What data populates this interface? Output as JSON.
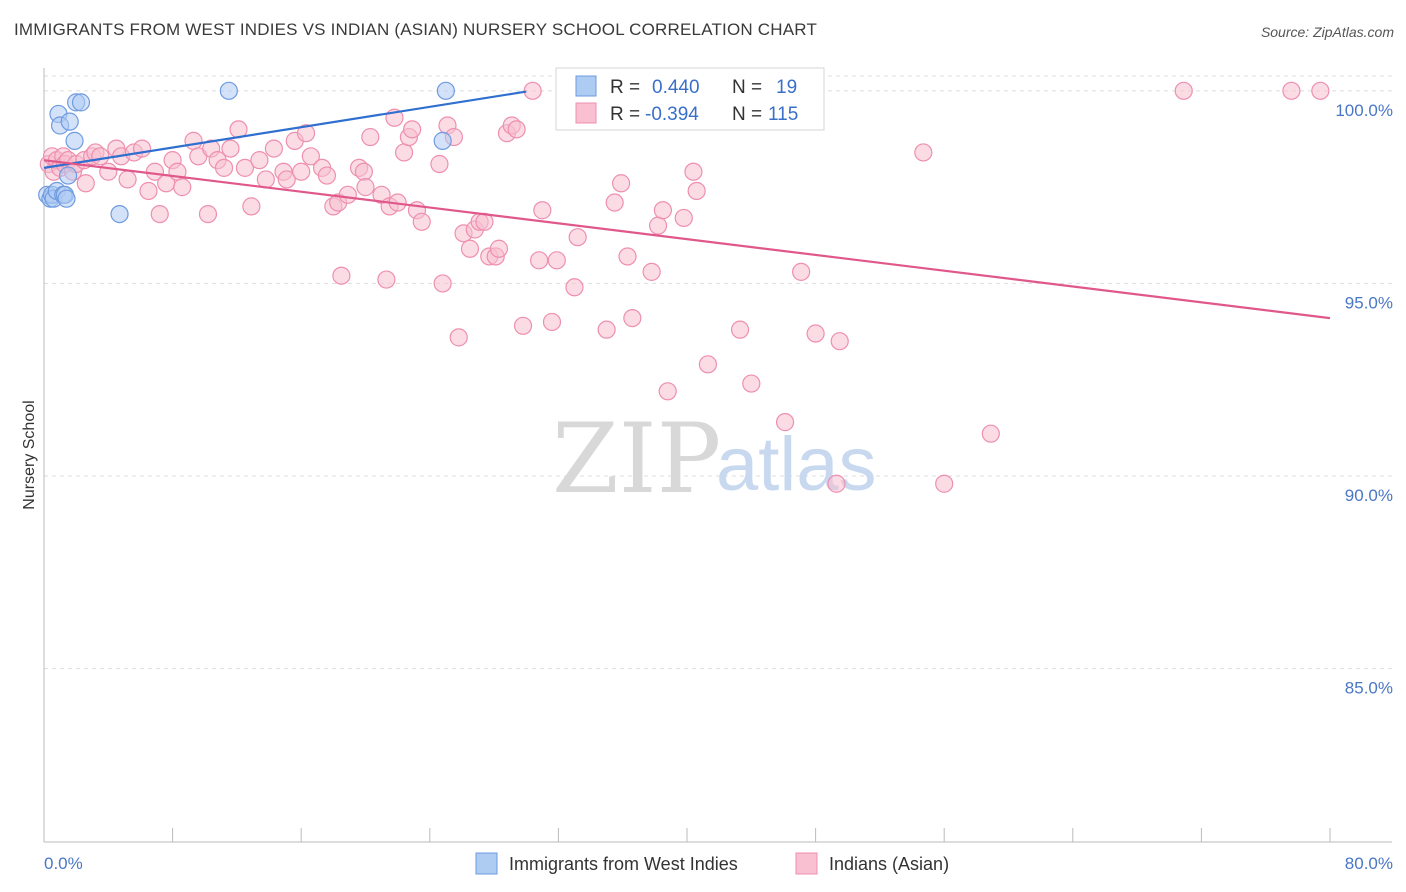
{
  "title": "IMMIGRANTS FROM WEST INDIES VS INDIAN (ASIAN) NURSERY SCHOOL CORRELATION CHART",
  "source": "Source: ZipAtlas.com",
  "watermark": {
    "zip": "ZIP",
    "atlas": "atlas"
  },
  "legend_top": [
    {
      "r_label": "R =",
      "r_value": "0.440",
      "n_label": "N =",
      "n_value": "19",
      "color": "#aecbf2",
      "stroke": "#6f9be0"
    },
    {
      "r_label": "R =",
      "r_value": "-0.394",
      "n_label": "N =",
      "n_value": "115",
      "color": "#f8c0d0",
      "stroke": "#ee8fb0"
    }
  ],
  "chart_data": {
    "type": "scatter",
    "title": "IMMIGRANTS FROM WEST INDIES VS INDIAN (ASIAN) NURSERY SCHOOL CORRELATION CHART",
    "xlabel": "",
    "ylabel": "Nursery School",
    "xlim": [
      0,
      80
    ],
    "ylim": [
      80.5,
      100.8
    ],
    "x_tick_labels": [
      "0.0%",
      "80.0%"
    ],
    "y_ticks": [
      85,
      90,
      95,
      100
    ],
    "y_tick_labels": [
      "85.0%",
      "90.0%",
      "95.0%",
      "100.0%"
    ],
    "series": [
      {
        "name": "Immigrants from West Indies",
        "color": "#aecbf2",
        "stroke": "#6f9be0",
        "line_color": "#2f6fcf",
        "trend": [
          [
            0,
            98.0
          ],
          [
            30,
            99.98
          ]
        ],
        "points": [
          [
            0.2,
            97.3
          ],
          [
            0.4,
            97.2
          ],
          [
            0.5,
            97.3
          ],
          [
            0.6,
            97.2
          ],
          [
            0.8,
            97.4
          ],
          [
            0.9,
            99.4
          ],
          [
            1.0,
            99.1
          ],
          [
            1.2,
            97.3
          ],
          [
            1.3,
            97.3
          ],
          [
            1.4,
            97.2
          ],
          [
            1.5,
            97.8
          ],
          [
            1.6,
            99.2
          ],
          [
            1.9,
            98.7
          ],
          [
            2.0,
            99.7
          ],
          [
            2.3,
            99.7
          ],
          [
            4.7,
            96.8
          ],
          [
            11.5,
            100.0
          ],
          [
            25.0,
            100.0
          ],
          [
            24.8,
            98.7
          ]
        ]
      },
      {
        "name": "Indians (Asian)",
        "color": "#f8c0d0",
        "stroke": "#ee8fb0",
        "line_color": "#e0588a",
        "trend": [
          [
            0,
            98.2
          ],
          [
            80,
            94.1
          ]
        ],
        "points": [
          [
            0.3,
            98.1
          ],
          [
            0.5,
            98.3
          ],
          [
            0.6,
            97.9
          ],
          [
            0.8,
            98.2
          ],
          [
            1.0,
            98.0
          ],
          [
            1.2,
            98.3
          ],
          [
            1.3,
            98.1
          ],
          [
            1.5,
            98.2
          ],
          [
            1.8,
            97.9
          ],
          [
            2.0,
            98.1
          ],
          [
            2.5,
            98.2
          ],
          [
            2.6,
            97.6
          ],
          [
            3.0,
            98.3
          ],
          [
            3.2,
            98.4
          ],
          [
            3.5,
            98.3
          ],
          [
            4.0,
            97.9
          ],
          [
            4.5,
            98.5
          ],
          [
            4.8,
            98.3
          ],
          [
            5.2,
            97.7
          ],
          [
            5.6,
            98.4
          ],
          [
            6.1,
            98.5
          ],
          [
            6.5,
            97.4
          ],
          [
            6.9,
            97.9
          ],
          [
            7.2,
            96.8
          ],
          [
            7.6,
            97.6
          ],
          [
            8.0,
            98.2
          ],
          [
            8.3,
            97.9
          ],
          [
            8.6,
            97.5
          ],
          [
            9.3,
            98.7
          ],
          [
            9.6,
            98.3
          ],
          [
            10.2,
            96.8
          ],
          [
            10.4,
            98.5
          ],
          [
            10.8,
            98.2
          ],
          [
            11.2,
            98.0
          ],
          [
            11.6,
            98.5
          ],
          [
            12.1,
            99.0
          ],
          [
            12.5,
            98.0
          ],
          [
            12.9,
            97.0
          ],
          [
            13.4,
            98.2
          ],
          [
            13.8,
            97.7
          ],
          [
            14.3,
            98.5
          ],
          [
            14.9,
            97.9
          ],
          [
            15.1,
            97.7
          ],
          [
            15.6,
            98.7
          ],
          [
            16.0,
            97.9
          ],
          [
            16.3,
            98.9
          ],
          [
            16.6,
            98.3
          ],
          [
            17.3,
            98.0
          ],
          [
            17.6,
            97.8
          ],
          [
            18.0,
            97.0
          ],
          [
            18.3,
            97.1
          ],
          [
            18.5,
            95.2
          ],
          [
            18.9,
            97.3
          ],
          [
            19.6,
            98.0
          ],
          [
            19.9,
            97.9
          ],
          [
            20.0,
            97.5
          ],
          [
            20.3,
            98.8
          ],
          [
            21.0,
            97.3
          ],
          [
            21.3,
            95.1
          ],
          [
            21.5,
            97.0
          ],
          [
            21.8,
            99.3
          ],
          [
            22.0,
            97.1
          ],
          [
            22.4,
            98.4
          ],
          [
            22.7,
            98.8
          ],
          [
            22.9,
            99.0
          ],
          [
            23.2,
            96.9
          ],
          [
            23.5,
            96.6
          ],
          [
            24.6,
            98.1
          ],
          [
            24.8,
            95.0
          ],
          [
            25.1,
            99.1
          ],
          [
            25.5,
            98.8
          ],
          [
            25.8,
            93.6
          ],
          [
            26.1,
            96.3
          ],
          [
            26.5,
            95.9
          ],
          [
            26.8,
            96.4
          ],
          [
            27.1,
            96.6
          ],
          [
            27.4,
            96.6
          ],
          [
            27.7,
            95.7
          ],
          [
            28.1,
            95.7
          ],
          [
            28.3,
            95.9
          ],
          [
            28.8,
            98.9
          ],
          [
            29.1,
            99.1
          ],
          [
            29.4,
            99.0
          ],
          [
            29.8,
            93.9
          ],
          [
            30.4,
            100.0
          ],
          [
            30.8,
            95.6
          ],
          [
            31.0,
            96.9
          ],
          [
            31.6,
            94.0
          ],
          [
            31.9,
            95.6
          ],
          [
            33.0,
            94.9
          ],
          [
            33.2,
            96.2
          ],
          [
            35.0,
            93.8
          ],
          [
            35.5,
            97.1
          ],
          [
            35.9,
            97.6
          ],
          [
            36.3,
            95.7
          ],
          [
            36.6,
            94.1
          ],
          [
            37.8,
            95.3
          ],
          [
            38.2,
            96.5
          ],
          [
            38.5,
            96.9
          ],
          [
            38.8,
            92.2
          ],
          [
            39.8,
            96.7
          ],
          [
            40.4,
            97.9
          ],
          [
            40.6,
            97.4
          ],
          [
            41.3,
            92.9
          ],
          [
            43.3,
            93.8
          ],
          [
            44.0,
            92.4
          ],
          [
            46.1,
            91.4
          ],
          [
            47.1,
            95.3
          ],
          [
            48.0,
            93.7
          ],
          [
            49.3,
            89.8
          ],
          [
            49.5,
            93.5
          ],
          [
            54.7,
            98.4
          ],
          [
            56.0,
            89.8
          ],
          [
            58.9,
            91.1
          ],
          [
            70.9,
            100.0
          ],
          [
            77.6,
            100.0
          ],
          [
            79.4,
            100.0
          ]
        ]
      }
    ]
  }
}
